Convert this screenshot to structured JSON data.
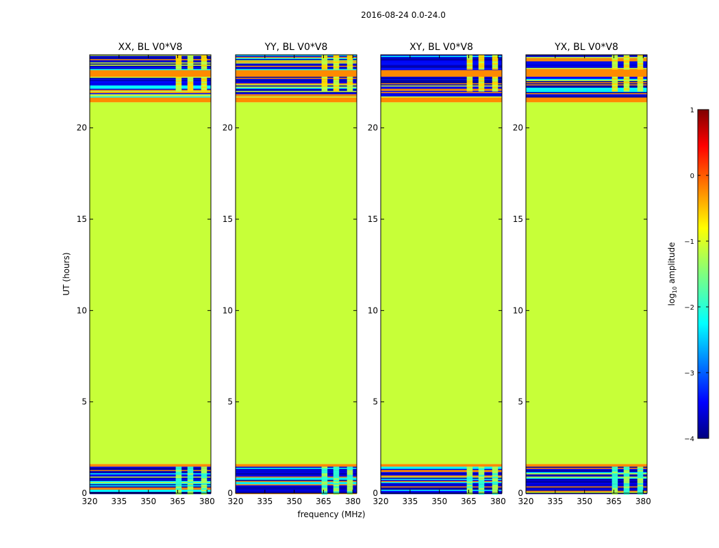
{
  "chart_data": {
    "type": "heatmap",
    "suptitle": "2016-08-24 0.0-24.0",
    "xlabel": "frequency (MHz)",
    "ylabel": "UT (hours)",
    "xlim": [
      320,
      382
    ],
    "ylim": [
      0,
      24
    ],
    "xticks": [
      320,
      335,
      350,
      365,
      380
    ],
    "yticks": [
      0,
      5,
      10,
      15,
      20
    ],
    "panels": [
      {
        "title": "XX, BL V0*V8",
        "polarization": "XX"
      },
      {
        "title": "YY, BL V0*V8",
        "polarization": "YY"
      },
      {
        "title": "XY, BL V0*V8",
        "polarization": "XY"
      },
      {
        "title": "YX, BL V0*V8",
        "polarization": "YX"
      }
    ],
    "colorbar": {
      "label": "log10 amplitude",
      "label_main": "log",
      "label_sub": "10",
      "label_rest": " amplitude",
      "colormap": "jet",
      "range": [
        -4,
        1
      ],
      "ticks": [
        1,
        0,
        -1,
        -2,
        -3,
        -4
      ],
      "tick_labels": [
        "1",
        "0",
        "−1",
        "−2",
        "−3",
        "−4"
      ]
    },
    "bands": [
      {
        "ut_from": 0.0,
        "ut_to": 1.45,
        "log_amp": -3.6,
        "note": "low-amplitude noise with bright RFI columns at ~364-380 MHz"
      },
      {
        "ut_from": 1.45,
        "ut_to": 1.6,
        "log_amp": -0.3
      },
      {
        "ut_from": 1.6,
        "ut_to": 21.4,
        "log_amp": -1.15,
        "note": "uniform plateau"
      },
      {
        "ut_from": 21.4,
        "ut_to": 21.7,
        "log_amp": -0.3
      },
      {
        "ut_from": 21.7,
        "ut_to": 22.8,
        "log_amp": -2.8,
        "note": "striped noise"
      },
      {
        "ut_from": 22.8,
        "ut_to": 23.2,
        "log_amp": -0.3
      },
      {
        "ut_from": 23.2,
        "ut_to": 24.0,
        "log_amp": -2.9,
        "note": "striped noise"
      }
    ],
    "rfi_columns_mhz": [
      [
        364,
        367
      ],
      [
        370,
        373
      ],
      [
        377,
        380
      ]
    ]
  }
}
